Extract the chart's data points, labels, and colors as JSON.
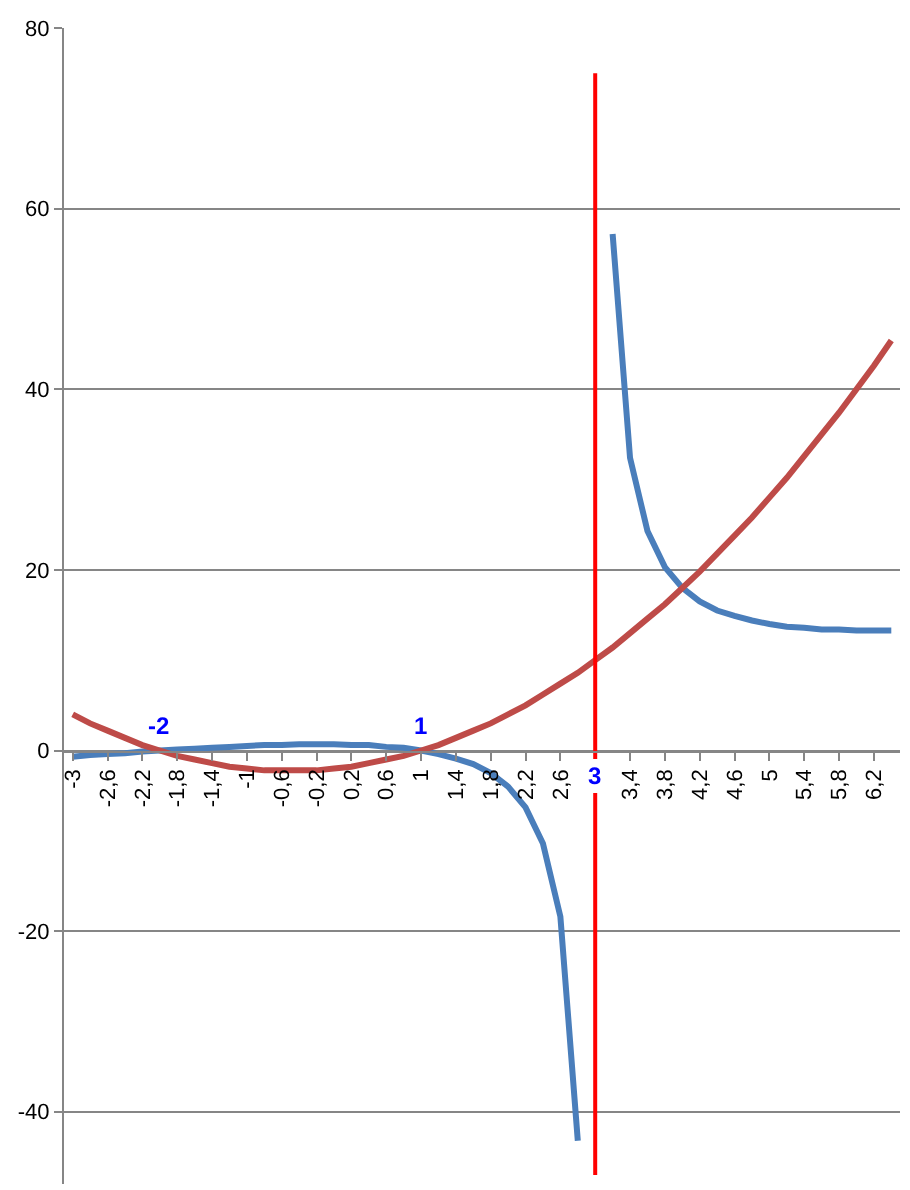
{
  "chart_data": {
    "type": "line",
    "x": [
      -3,
      -2.8,
      -2.6,
      -2.4,
      -2.2,
      -2,
      -1.8,
      -1.6,
      -1.4,
      -1.2,
      -1,
      -0.8,
      -0.6,
      -0.4,
      -0.2,
      0,
      0.2,
      0.4,
      0.6,
      0.8,
      1,
      1.2,
      1.4,
      1.6,
      1.8,
      2,
      2.2,
      2.4,
      2.6,
      2.8,
      3,
      3.2,
      3.4,
      3.6,
      3.8,
      4,
      4.2,
      4.4,
      4.6,
      4.8,
      5,
      5.2,
      5.4,
      5.6,
      5.8,
      6,
      6.2,
      6.4
    ],
    "series": [
      {
        "color": "#4a7ebb",
        "values": [
          -0.7,
          -0.5,
          -0.4,
          -0.3,
          -0.1,
          0,
          0.1,
          0.2,
          0.3,
          0.4,
          0.5,
          0.6,
          0.6,
          0.7,
          0.7,
          0.7,
          0.6,
          0.6,
          0.4,
          0.3,
          0,
          -0.4,
          -0.9,
          -1.5,
          -2.5,
          -4,
          -6.3,
          -10.3,
          -18.4,
          -43.2,
          null,
          57.2,
          32.4,
          24.3,
          20.3,
          18,
          16.5,
          15.5,
          14.9,
          14.4,
          14,
          13.7,
          13.6,
          13.4,
          13.4,
          13.3,
          13.3,
          13.3
        ]
      },
      {
        "color": "#be4b48",
        "values": [
          4.0,
          3.0,
          2.2,
          1.4,
          0.6,
          0,
          -0.6,
          -1.0,
          -1.4,
          -1.8,
          -2,
          -2.2,
          -2.2,
          -2.2,
          -2.2,
          -2,
          -1.8,
          -1.4,
          -1.0,
          -0.6,
          0,
          0.6,
          1.4,
          2.2,
          3.0,
          4,
          5.0,
          6.2,
          7.4,
          8.6,
          10,
          11.4,
          13.0,
          14.6,
          16.2,
          18,
          19.8,
          21.8,
          23.8,
          25.8,
          28,
          30.2,
          32.6,
          35.0,
          37.4,
          40,
          42.6,
          45.4
        ]
      },
      {
        "type": "line",
        "color": "#ff0000",
        "x": [
          3,
          3
        ],
        "values": [
          75,
          -47
        ]
      }
    ],
    "xlim": [
      -3.1,
      6.5
    ],
    "xticks": [
      {
        "value": -3,
        "label": "-3"
      },
      {
        "value": -2.6,
        "label": "-2,6"
      },
      {
        "value": -2.2,
        "label": "-2,2"
      },
      {
        "value": -1.8,
        "label": "-1,8"
      },
      {
        "value": -1.4,
        "label": "-1,4"
      },
      {
        "value": -1,
        "label": "-1"
      },
      {
        "value": -0.6,
        "label": "-0,6"
      },
      {
        "value": -0.2,
        "label": "-0,2"
      },
      {
        "value": 0.2,
        "label": "0,2"
      },
      {
        "value": 0.6,
        "label": "0,6"
      },
      {
        "value": 1,
        "label": "1"
      },
      {
        "value": 1.4,
        "label": "1,4"
      },
      {
        "value": 1.8,
        "label": "1,8"
      },
      {
        "value": 2.2,
        "label": "2,2"
      },
      {
        "value": 2.6,
        "label": "2,6"
      },
      {
        "value": 3.4,
        "label": "3,4"
      },
      {
        "value": 3.8,
        "label": "3,8"
      },
      {
        "value": 4.2,
        "label": "4,2"
      },
      {
        "value": 4.6,
        "label": "4,6"
      },
      {
        "value": 5,
        "label": "5"
      },
      {
        "value": 5.4,
        "label": "5,4"
      },
      {
        "value": 5.8,
        "label": "5,8"
      },
      {
        "value": 6.2,
        "label": "6,2"
      }
    ],
    "ylim": [
      -48,
      80
    ],
    "yticks": [
      -40,
      -20,
      0,
      20,
      40,
      60,
      80
    ],
    "grid": "y",
    "marker": "none",
    "line_style": "solid",
    "annotations": [
      {
        "text": "-2",
        "x": -2,
        "y": 0
      },
      {
        "text": "1",
        "x": 1,
        "y": 0
      },
      {
        "text": "3",
        "x": 3,
        "y": 0
      }
    ]
  }
}
